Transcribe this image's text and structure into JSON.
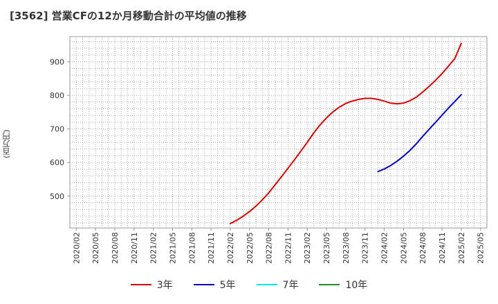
{
  "title": "[3562]  営業CFの12か月移動合計の平均値の推移",
  "y_unit": "(百万円)",
  "chart_data": {
    "type": "line",
    "ylim": [
      405,
      975
    ],
    "yticks": [
      500,
      600,
      700,
      800,
      900
    ],
    "grid": true,
    "legend_position": "bottom",
    "x_tick_labels": [
      "2020/02",
      "2020/05",
      "2020/08",
      "2020/11",
      "2021/02",
      "2021/05",
      "2021/08",
      "2021/11",
      "2022/02",
      "2022/05",
      "2022/08",
      "2022/11",
      "2023/02",
      "2023/05",
      "2023/08",
      "2023/11",
      "2024/02",
      "2024/05",
      "2024/08",
      "2024/11",
      "2025/02",
      "2025/05"
    ],
    "series": [
      {
        "name": "3年",
        "color": "#dd0000",
        "x": [
          "2022/02",
          "2022/03",
          "2022/04",
          "2022/05",
          "2022/06",
          "2022/07",
          "2022/08",
          "2022/09",
          "2022/10",
          "2022/11",
          "2022/12",
          "2023/01",
          "2023/02",
          "2023/03",
          "2023/04",
          "2023/05",
          "2023/06",
          "2023/07",
          "2023/08",
          "2023/09",
          "2023/10",
          "2023/11",
          "2023/12",
          "2024/01",
          "2024/02",
          "2024/03",
          "2024/04",
          "2024/05",
          "2024/06",
          "2024/07",
          "2024/08",
          "2024/09",
          "2024/10",
          "2024/11",
          "2024/12",
          "2025/01",
          "2025/02"
        ],
        "values": [
          418,
          428,
          440,
          454,
          470,
          489,
          510,
          534,
          558,
          583,
          608,
          634,
          660,
          688,
          712,
          733,
          751,
          765,
          776,
          783,
          788,
          791,
          791,
          788,
          783,
          777,
          775,
          777,
          784,
          795,
          810,
          827,
          845,
          865,
          887,
          910,
          955
        ]
      },
      {
        "name": "5年",
        "color": "#0000cc",
        "x": [
          "2024/01",
          "2024/02",
          "2024/03",
          "2024/04",
          "2024/05",
          "2024/06",
          "2024/07",
          "2024/08",
          "2024/09",
          "2024/10",
          "2024/11",
          "2024/12",
          "2025/01",
          "2025/02"
        ],
        "values": [
          573,
          581,
          591,
          604,
          619,
          636,
          656,
          678,
          699,
          720,
          741,
          762,
          782,
          802
        ]
      },
      {
        "name": "7年",
        "color": "#00e5ee",
        "x": [],
        "values": []
      },
      {
        "name": "10年",
        "color": "#228b22",
        "x": [],
        "values": []
      }
    ]
  }
}
